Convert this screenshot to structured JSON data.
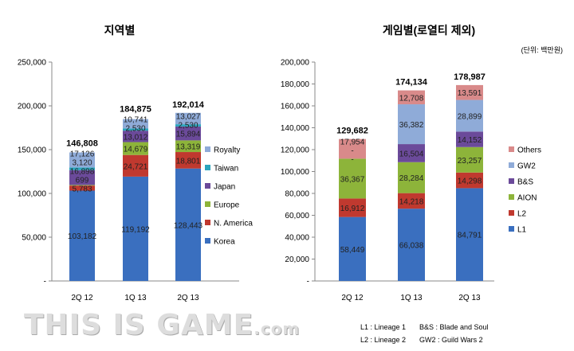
{
  "titles": {
    "left": "지역별",
    "right": "게임별(로열티 제외)",
    "unit": "(단위: 백만원)"
  },
  "footnotes": {
    "l1": "L1 : Lineage 1",
    "bs": "B&S : Blade and Soul",
    "l2": "L2 : Lineage 2",
    "gw2": "GW2 : Guild Wars 2"
  },
  "watermark": "THIS IS GAME.com",
  "chart_data": [
    {
      "type": "bar",
      "stacked": true,
      "title": "지역별",
      "categories": [
        "2Q 12",
        "1Q 13",
        "2Q 13"
      ],
      "ylim": [
        0,
        250000
      ],
      "yticks": [
        0,
        50000,
        100000,
        150000,
        200000,
        250000
      ],
      "ytick_labels": [
        "-",
        "50,000",
        "100,000",
        "150,000",
        "200,000",
        "250,000"
      ],
      "totals": [
        146808,
        184875,
        192014
      ],
      "total_labels": [
        "146,808",
        "184,875",
        "192,014"
      ],
      "legend": "right",
      "series": [
        {
          "name": "Korea",
          "color": "#3a6fbf",
          "values": [
            103182,
            119192,
            128443
          ]
        },
        {
          "name": "N. America",
          "color": "#c0392f",
          "values": [
            5783,
            24721,
            18801
          ]
        },
        {
          "name": "Europe",
          "color": "#8db43a",
          "values": [
            699,
            14679,
            13319
          ]
        },
        {
          "name": "Japan",
          "color": "#6b4a9a",
          "values": [
            16898,
            13012,
            15894
          ]
        },
        {
          "name": "Taiwan",
          "color": "#2aa5bd",
          "values": [
            3120,
            2530,
            2530
          ]
        },
        {
          "name": "Royalty",
          "color": "#8fabd8",
          "values": [
            17126,
            10741,
            13027
          ]
        }
      ]
    },
    {
      "type": "bar",
      "stacked": true,
      "title": "게임별(로열티 제외)",
      "categories": [
        "2Q 12",
        "1Q 13",
        "2Q 13"
      ],
      "ylim": [
        0,
        200000
      ],
      "yticks": [
        0,
        20000,
        40000,
        60000,
        80000,
        100000,
        120000,
        140000,
        160000,
        180000,
        200000
      ],
      "ytick_labels": [
        "-",
        "20,000",
        "40,000",
        "60,000",
        "80,000",
        "100,000",
        "120,000",
        "140,000",
        "160,000",
        "180,000",
        "200,000"
      ],
      "totals": [
        129682,
        174134,
        178987
      ],
      "total_labels": [
        "129,682",
        "174,134",
        "178,987"
      ],
      "legend": "right",
      "series": [
        {
          "name": "L1",
          "color": "#3a6fbf",
          "values": [
            58449,
            66038,
            84791
          ]
        },
        {
          "name": "L2",
          "color": "#c0392f",
          "values": [
            16912,
            14218,
            14298
          ]
        },
        {
          "name": "AION",
          "color": "#8db43a",
          "values": [
            36367,
            28284,
            23257
          ]
        },
        {
          "name": "B&S",
          "color": "#6b4a9a",
          "values": [
            0,
            16504,
            14152
          ]
        },
        {
          "name": "GW2",
          "color": "#8fabd8",
          "values": [
            0,
            36382,
            28899
          ]
        },
        {
          "name": "Others",
          "color": "#d98a8a",
          "values": [
            17954,
            12708,
            13591
          ]
        }
      ]
    }
  ]
}
